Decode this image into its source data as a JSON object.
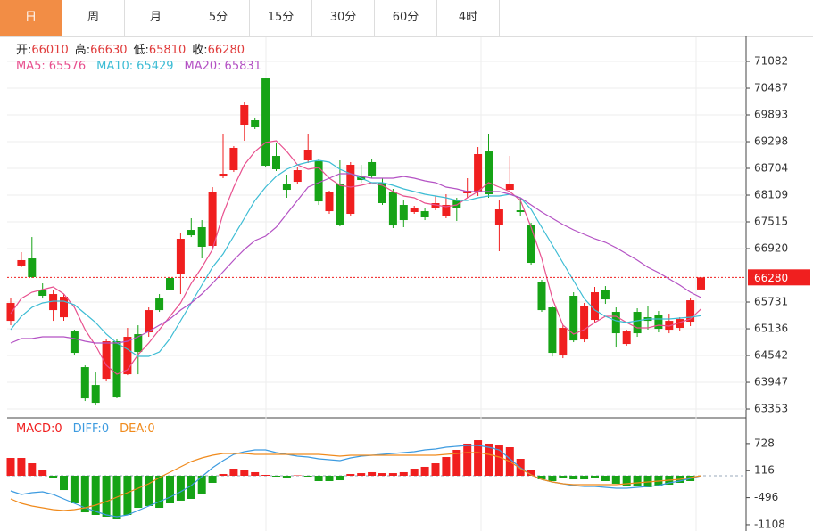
{
  "tabs": [
    "日",
    "周",
    "月",
    "5分",
    "15分",
    "30分",
    "60分",
    "4时"
  ],
  "active_tab": 0,
  "chart_data": [
    {
      "type": "candlestick",
      "up_color": "#f01f1f",
      "down_color": "#16a316",
      "grid": true,
      "ohlc_labels": [
        "开:",
        "高:",
        "低:",
        "收:"
      ],
      "open": [
        65314,
        66544,
        66702,
        66008,
        65552,
        65393,
        65077,
        64284,
        63887,
        64026,
        64859,
        64125,
        65017,
        65057,
        65810,
        66266,
        66365,
        67336,
        67396,
        66980,
        68525,
        68664,
        69675,
        69774,
        70705,
        68981,
        68367,
        68406,
        68882,
        68862,
        67752,
        68367,
        67693,
        68525,
        68843,
        68387,
        68188,
        67891,
        67733,
        67752,
        67832,
        67634,
        67990,
        68149,
        68169,
        69080,
        67455,
        68228,
        67772,
        67455,
        66187,
        65612,
        64561,
        65870,
        64898,
        65334,
        66008,
        65513,
        64799,
        65513,
        65394,
        65434,
        65116,
        65156,
        65295,
        66010
      ],
      "high": [
        65810,
        66841,
        67177,
        66147,
        66008,
        65909,
        65116,
        64323,
        64165,
        64918,
        64918,
        65156,
        65215,
        65612,
        65909,
        66345,
        67257,
        67594,
        67554,
        68287,
        69477,
        69199,
        70170,
        69834,
        70705,
        69279,
        68565,
        68743,
        69477,
        68922,
        68208,
        68882,
        68843,
        68783,
        68922,
        68486,
        68248,
        67990,
        67871,
        67832,
        68090,
        68129,
        68050,
        68486,
        69179,
        69477,
        67990,
        68981,
        68050,
        67495,
        66226,
        65651,
        65215,
        65949,
        65711,
        66068,
        66087,
        65612,
        65116,
        65592,
        65651,
        65532,
        65473,
        65394,
        65810,
        66630
      ],
      "low": [
        65215,
        66504,
        66266,
        65810,
        65314,
        65314,
        64561,
        63531,
        63432,
        63967,
        63590,
        64105,
        64125,
        64958,
        65513,
        65949,
        65909,
        67177,
        66702,
        66940,
        68485,
        68624,
        69318,
        69576,
        68723,
        68644,
        68050,
        68347,
        68823,
        67891,
        67693,
        67416,
        67634,
        68387,
        68486,
        67891,
        67376,
        67396,
        67693,
        67554,
        67772,
        67594,
        67535,
        68050,
        68090,
        68050,
        66861,
        68169,
        67634,
        66563,
        65513,
        64521,
        64482,
        64839,
        64839,
        65275,
        65691,
        64720,
        64760,
        64958,
        65116,
        65057,
        65037,
        65097,
        65196,
        65810
      ],
      "close": [
        65711,
        66663,
        66286,
        65870,
        65909,
        65850,
        64601,
        63590,
        63491,
        64859,
        63610,
        64958,
        64621,
        65552,
        65552,
        66008,
        67138,
        67217,
        66960,
        68188,
        68585,
        69160,
        70111,
        69635,
        68763,
        68684,
        68228,
        68664,
        69120,
        67970,
        68169,
        67455,
        68783,
        68446,
        68545,
        67931,
        67435,
        67554,
        67812,
        67614,
        67931,
        67891,
        67832,
        68208,
        69021,
        68129,
        67792,
        68347,
        67733,
        66603,
        65552,
        64601,
        65156,
        64878,
        65651,
        65949,
        65790,
        65037,
        65077,
        65037,
        65314,
        65136,
        65314,
        65354,
        65770,
        66280
      ],
      "series": [
        {
          "name": "MA5:",
          "color": "#e8508e",
          "values": [
            65473,
            65810,
            65949,
            66008,
            66068,
            65909,
            65612,
            65117,
            64760,
            64324,
            64126,
            64225,
            64562,
            64819,
            65117,
            65414,
            65711,
            66147,
            66504,
            66900,
            67693,
            68288,
            68783,
            69081,
            69279,
            69318,
            69081,
            68783,
            68684,
            68724,
            68486,
            68327,
            68288,
            68327,
            68387,
            68327,
            68189,
            68090,
            68050,
            67931,
            67891,
            67852,
            67891,
            68050,
            68189,
            68387,
            68288,
            68189,
            67990,
            67396,
            66702,
            65810,
            65216,
            65017,
            65117,
            65275,
            65414,
            65414,
            65275,
            65156,
            65156,
            65216,
            65196,
            65275,
            65354,
            65576
          ]
        },
        {
          "name": "MA10:",
          "color": "#3cbcd4",
          "values": [
            65117,
            65414,
            65612,
            65711,
            65751,
            65751,
            65672,
            65473,
            65275,
            65017,
            64819,
            64681,
            64522,
            64522,
            64621,
            64918,
            65315,
            65711,
            66108,
            66504,
            66801,
            67198,
            67594,
            67990,
            68288,
            68526,
            68684,
            68783,
            68843,
            68882,
            68843,
            68684,
            68585,
            68486,
            68387,
            68387,
            68327,
            68248,
            68189,
            68129,
            68090,
            68050,
            67990,
            67990,
            68050,
            68090,
            68090,
            68129,
            68050,
            67792,
            67396,
            66999,
            66603,
            66207,
            65810,
            65553,
            65414,
            65315,
            65275,
            65315,
            65354,
            65354,
            65354,
            65374,
            65394,
            65429
          ]
        },
        {
          "name": "MA20:",
          "color": "#b452c4",
          "values": [
            64819,
            64918,
            64918,
            64958,
            64958,
            64958,
            64918,
            64859,
            64819,
            64819,
            64819,
            64859,
            64958,
            65077,
            65216,
            65354,
            65553,
            65711,
            65909,
            66147,
            66405,
            66663,
            66900,
            67099,
            67198,
            67396,
            67693,
            67990,
            68288,
            68387,
            68486,
            68585,
            68585,
            68526,
            68486,
            68486,
            68486,
            68526,
            68486,
            68427,
            68387,
            68288,
            68248,
            68189,
            68189,
            68189,
            68189,
            68129,
            68050,
            67891,
            67733,
            67594,
            67455,
            67336,
            67237,
            67138,
            67059,
            66940,
            66801,
            66663,
            66504,
            66385,
            66246,
            66108,
            65949,
            65831
          ]
        }
      ],
      "ylim": [
        63175,
        71617
      ],
      "yticks": [
        71082,
        70487,
        69893,
        69298,
        68704,
        68109,
        67515,
        66920,
        65731,
        65136,
        64542,
        63947,
        63353
      ]
    },
    {
      "type": "macd",
      "up_color": "#f01f1f",
      "down_color": "#16a316",
      "series": [
        {
          "name": "MACD:",
          "color": "#f01f1f",
          "kind": "bar",
          "values": [
            403,
            403,
            282,
            121,
            -60,
            -323,
            -625,
            -827,
            -887,
            -927,
            -988,
            -887,
            -726,
            -685,
            -726,
            -625,
            -564,
            -524,
            -423,
            -161,
            40,
            161,
            141,
            81,
            20,
            -20,
            -40,
            10,
            -20,
            -121,
            -121,
            -101,
            40,
            60,
            81,
            60,
            60,
            81,
            161,
            202,
            282,
            423,
            585,
            726,
            806,
            726,
            685,
            645,
            383,
            141,
            -81,
            -121,
            -60,
            -81,
            -81,
            -40,
            -121,
            -181,
            -242,
            -242,
            -262,
            -242,
            -202,
            -161,
            -121,
            0
          ]
        },
        {
          "name": "DIFF:",
          "color": "#3d9be0",
          "kind": "line",
          "values": [
            -343,
            -423,
            -383,
            -363,
            -423,
            -524,
            -625,
            -726,
            -806,
            -887,
            -927,
            -887,
            -786,
            -685,
            -585,
            -484,
            -363,
            -222,
            -20,
            181,
            343,
            484,
            544,
            585,
            585,
            524,
            484,
            444,
            423,
            383,
            363,
            343,
            403,
            444,
            464,
            484,
            504,
            524,
            544,
            585,
            605,
            645,
            665,
            685,
            685,
            645,
            585,
            383,
            181,
            20,
            -81,
            -141,
            -181,
            -222,
            -242,
            -242,
            -262,
            -282,
            -282,
            -262,
            -242,
            -222,
            -161,
            -121,
            -60,
            0
          ]
        },
        {
          "name": "DEA:",
          "color": "#f08a1c",
          "kind": "line",
          "values": [
            -524,
            -625,
            -685,
            -726,
            -766,
            -786,
            -766,
            -726,
            -665,
            -585,
            -484,
            -383,
            -282,
            -181,
            -40,
            81,
            202,
            323,
            403,
            464,
            504,
            504,
            504,
            484,
            484,
            484,
            484,
            484,
            484,
            484,
            464,
            444,
            464,
            464,
            464,
            464,
            464,
            464,
            464,
            464,
            464,
            484,
            504,
            524,
            524,
            484,
            423,
            323,
            161,
            20,
            -81,
            -141,
            -181,
            -202,
            -202,
            -202,
            -202,
            -202,
            -181,
            -161,
            -141,
            -121,
            -101,
            -81,
            -40,
            0
          ]
        }
      ],
      "ylim": [
        -1250,
        1250
      ],
      "yticks": [
        728,
        116,
        -496,
        -1108
      ]
    }
  ]
}
